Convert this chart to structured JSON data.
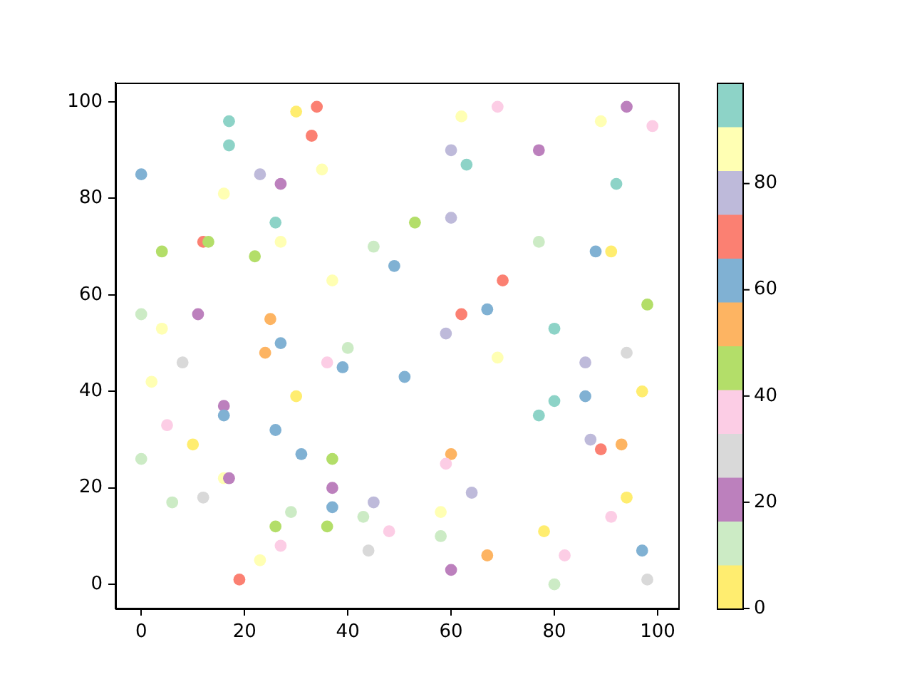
{
  "chart_data": {
    "type": "scatter",
    "marker": "circle",
    "x": [
      34,
      30,
      17,
      33,
      17,
      35,
      0,
      23,
      27,
      16,
      26,
      12,
      13,
      27,
      4,
      22,
      45,
      49,
      37,
      0,
      11,
      25,
      4,
      27,
      40,
      24,
      69,
      62,
      94,
      89,
      99,
      60,
      77,
      63,
      92,
      53,
      60,
      77,
      88,
      91,
      70,
      67,
      62,
      98,
      80,
      59,
      94,
      8,
      36,
      39,
      2,
      51,
      16,
      30,
      5,
      16,
      26,
      10,
      31,
      0,
      37,
      16,
      17,
      37,
      6,
      12,
      29,
      37,
      45,
      26,
      36,
      43,
      48,
      27,
      44,
      23,
      19,
      69,
      86,
      97,
      80,
      86,
      77,
      87,
      89,
      93,
      60,
      59,
      64,
      94,
      91,
      58,
      58,
      78,
      67,
      82,
      97,
      60,
      80,
      98
    ],
    "values": [
      99,
      98,
      96,
      93,
      91,
      86,
      85,
      85,
      83,
      81,
      75,
      71,
      71,
      71,
      69,
      68,
      70,
      66,
      63,
      56,
      56,
      55,
      53,
      50,
      49,
      48,
      99,
      97,
      99,
      96,
      95,
      90,
      90,
      87,
      83,
      75,
      76,
      71,
      69,
      69,
      63,
      57,
      56,
      58,
      53,
      52,
      48,
      46,
      46,
      45,
      42,
      43,
      37,
      39,
      33,
      35,
      32,
      29,
      27,
      26,
      26,
      22,
      22,
      20,
      17,
      18,
      15,
      16,
      17,
      12,
      12,
      14,
      11,
      8,
      7,
      5,
      1,
      47,
      46,
      40,
      38,
      39,
      35,
      30,
      28,
      29,
      27,
      25,
      19,
      18,
      14,
      15,
      10,
      11,
      6,
      6,
      7,
      3,
      0,
      1
    ],
    "cvalues": [
      70,
      4,
      95,
      70,
      95,
      87,
      62,
      78,
      21,
      87,
      95,
      70,
      45,
      87,
      45,
      45,
      12,
      62,
      87,
      12,
      21,
      54,
      87,
      62,
      12,
      54,
      37,
      87,
      21,
      87,
      37,
      78,
      21,
      95,
      95,
      45,
      78,
      12,
      62,
      4,
      70,
      62,
      70,
      45,
      95,
      78,
      29,
      29,
      37,
      62,
      87,
      62,
      21,
      4,
      37,
      62,
      62,
      4,
      62,
      12,
      45,
      87,
      21,
      21,
      12,
      29,
      12,
      62,
      78,
      45,
      45,
      12,
      37,
      37,
      29,
      87,
      70,
      87,
      78,
      4,
      95,
      62,
      95,
      78,
      70,
      54,
      54,
      37,
      78,
      4,
      37,
      87,
      12,
      4,
      54,
      37,
      62,
      21,
      12,
      29
    ],
    "xlim": [
      -5,
      104
    ],
    "ylim": [
      -5,
      104
    ],
    "xticks": [
      0,
      20,
      40,
      60,
      80,
      100
    ],
    "yticks": [
      0,
      20,
      40,
      60,
      80,
      100
    ],
    "clim": [
      0,
      99
    ],
    "cticks": [
      0,
      20,
      40,
      60,
      80
    ]
  }
}
